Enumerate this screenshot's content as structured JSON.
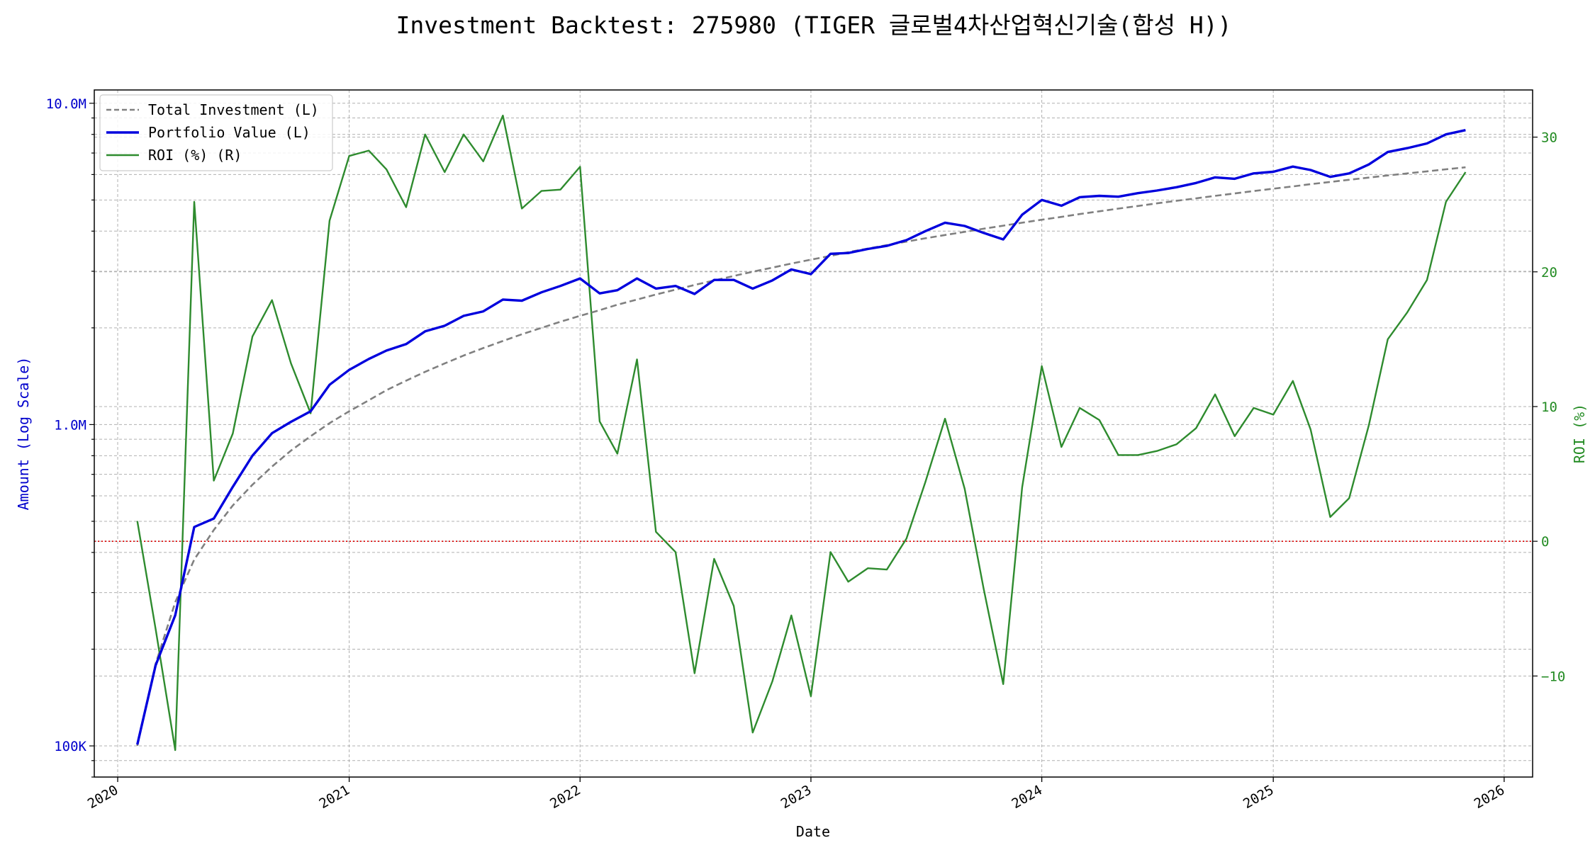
{
  "chart_data": {
    "type": "line",
    "title": "Investment Backtest: 275980 (TIGER 글로벌4차산업혁신기술(합성 H))",
    "xlabel": "Date",
    "ylabel_left": "Amount (Log Scale)",
    "ylabel_right": "ROI (%)",
    "y_left_scale": "log",
    "y_left_range": [
      80000,
      11000000
    ],
    "y_right_range": [
      -17.5,
      33.5
    ],
    "x_range": [
      "2019-11-25",
      "2026-02-15"
    ],
    "x_ticks": [
      {
        "label": "2020",
        "date": "2020-01-01"
      },
      {
        "label": "2021",
        "date": "2021-01-01"
      },
      {
        "label": "2022",
        "date": "2022-01-01"
      },
      {
        "label": "2023",
        "date": "2023-01-01"
      },
      {
        "label": "2024",
        "date": "2024-01-01"
      },
      {
        "label": "2025",
        "date": "2025-01-01"
      },
      {
        "label": "2026",
        "date": "2026-01-01"
      }
    ],
    "y_left_ticks": [
      {
        "label": "100K",
        "value": 100000
      },
      {
        "label": "1.0M",
        "value": 1000000
      },
      {
        "label": "10.0M",
        "value": 10000000
      }
    ],
    "y_right_ticks": [
      {
        "label": "−10",
        "value": -10
      },
      {
        "label": "0",
        "value": 0
      },
      {
        "label": "10",
        "value": 10
      },
      {
        "label": "20",
        "value": 20
      },
      {
        "label": "30",
        "value": 30
      }
    ],
    "grid": true,
    "legend_position": "top-left",
    "colors": {
      "investment": "#808080",
      "portfolio": "#0000dd",
      "roi": "#2e8b2e",
      "zero_line": "#dd0000",
      "left_axis": "#0000cc",
      "right_axis": "#228b22"
    },
    "dates": [
      "2020-02-01",
      "2020-03-01",
      "2020-04-01",
      "2020-05-01",
      "2020-06-01",
      "2020-07-01",
      "2020-08-01",
      "2020-09-01",
      "2020-10-01",
      "2020-11-01",
      "2020-12-01",
      "2021-01-01",
      "2021-02-01",
      "2021-03-01",
      "2021-04-01",
      "2021-05-01",
      "2021-06-01",
      "2021-07-01",
      "2021-08-01",
      "2021-09-01",
      "2021-10-01",
      "2021-11-01",
      "2021-12-01",
      "2022-01-01",
      "2022-02-01",
      "2022-03-01",
      "2022-04-01",
      "2022-05-01",
      "2022-06-01",
      "2022-07-01",
      "2022-08-01",
      "2022-09-01",
      "2022-10-01",
      "2022-11-01",
      "2022-12-01",
      "2023-01-01",
      "2023-02-01",
      "2023-03-01",
      "2023-04-01",
      "2023-05-01",
      "2023-06-01",
      "2023-07-01",
      "2023-08-01",
      "2023-09-01",
      "2023-10-01",
      "2023-11-01",
      "2023-12-01",
      "2024-01-01",
      "2024-02-01",
      "2024-03-01",
      "2024-04-01",
      "2024-05-01",
      "2024-06-01",
      "2024-07-01",
      "2024-08-01",
      "2024-09-01",
      "2024-10-01",
      "2024-11-01",
      "2024-12-01",
      "2025-01-01",
      "2025-02-01",
      "2025-03-01",
      "2025-04-01",
      "2025-05-01",
      "2025-06-01",
      "2025-07-01",
      "2025-08-01",
      "2025-09-01",
      "2025-10-01",
      "2025-11-01"
    ],
    "series": [
      {
        "name": "Total Investment (L)",
        "axis": "left",
        "style": "dashed",
        "values": [
          100000,
          180000,
          280000,
          380000,
          470000,
          560000,
          650000,
          740000,
          830000,
          920000,
          1010000,
          1100000,
          1190000,
          1280000,
          1370000,
          1460000,
          1550000,
          1640000,
          1730000,
          1820000,
          1910000,
          2000000,
          2090000,
          2180000,
          2270000,
          2360000,
          2450000,
          2540000,
          2630000,
          2720000,
          2810000,
          2900000,
          2990000,
          3080000,
          3170000,
          3260000,
          3350000,
          3440000,
          3530000,
          3620000,
          3710000,
          3800000,
          3890000,
          3980000,
          4070000,
          4160000,
          4250000,
          4340000,
          4430000,
          4520000,
          4610000,
          4700000,
          4790000,
          4880000,
          4970000,
          5060000,
          5150000,
          5240000,
          5330000,
          5420000,
          5510000,
          5600000,
          5690000,
          5780000,
          5870000,
          5960000,
          6050000,
          6140000,
          6230000,
          6320000
        ]
      },
      {
        "name": "Portfolio Value (L)",
        "axis": "left",
        "style": "solid",
        "values": [
          101000,
          178000,
          255000,
          480000,
          510000,
          640000,
          800000,
          940000,
          1020000,
          1100000,
          1330000,
          1480000,
          1600000,
          1700000,
          1780000,
          1950000,
          2030000,
          2180000,
          2250000,
          2450000,
          2430000,
          2580000,
          2700000,
          2850000,
          2560000,
          2620000,
          2850000,
          2650000,
          2700000,
          2550000,
          2820000,
          2820000,
          2650000,
          2810000,
          3040000,
          2940000,
          3400000,
          3420000,
          3520000,
          3600000,
          3750000,
          4000000,
          4250000,
          4150000,
          3950000,
          3770000,
          4500000,
          5000000,
          4800000,
          5100000,
          5150000,
          5120000,
          5250000,
          5350000,
          5480000,
          5650000,
          5880000,
          5820000,
          6050000,
          6120000,
          6350000,
          6200000,
          5900000,
          6050000,
          6450000,
          7050000,
          7250000,
          7500000,
          8000000,
          8250000
        ]
      },
      {
        "name": "ROI (%) (R)",
        "axis": "right",
        "style": "solid",
        "values": [
          1.5,
          -6.5,
          -15.5,
          25.2,
          4.5,
          8.0,
          15.2,
          17.9,
          13.2,
          9.5,
          23.8,
          28.6,
          29.0,
          27.6,
          24.8,
          30.2,
          27.4,
          30.2,
          28.2,
          31.6,
          24.7,
          26.0,
          26.1,
          27.8,
          8.9,
          6.5,
          13.5,
          0.7,
          -0.8,
          -9.8,
          -1.3,
          -4.8,
          -14.2,
          -10.4,
          -5.5,
          -11.5,
          -0.8,
          -3.0,
          -2.0,
          -2.1,
          0.2,
          4.4,
          9.1,
          3.9,
          -3.5,
          -10.6,
          4.0,
          13.0,
          7.0,
          9.9,
          9.0,
          6.4,
          6.4,
          6.7,
          7.2,
          8.4,
          10.9,
          7.8,
          9.9,
          9.4,
          11.9,
          8.3,
          1.8,
          3.2,
          8.6,
          15.0,
          17.0,
          19.4,
          25.2,
          27.4
        ]
      }
    ],
    "reference_lines": [
      {
        "axis": "right",
        "value": 0,
        "style": "dotted"
      }
    ]
  }
}
